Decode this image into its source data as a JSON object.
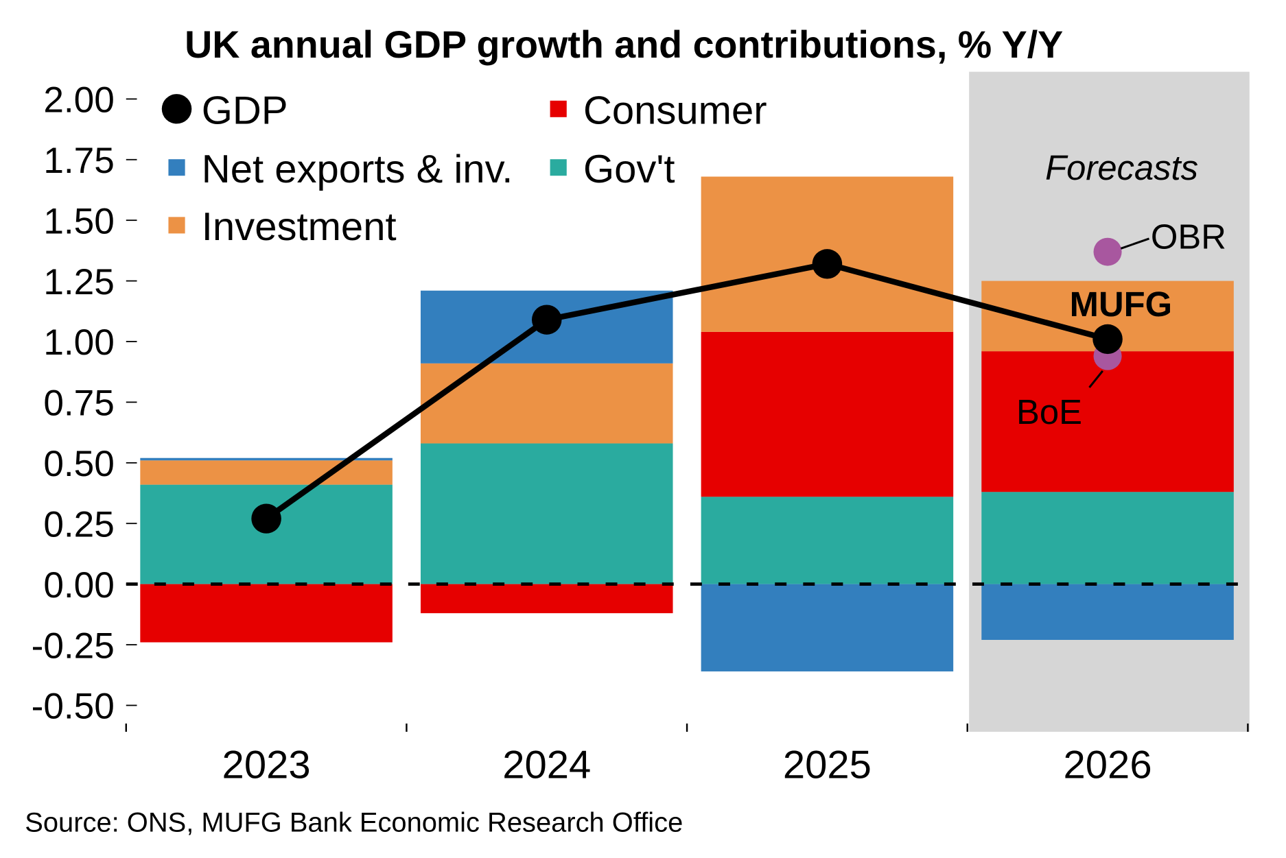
{
  "chart_data": {
    "type": "bar",
    "stacked": true,
    "title": "UK annual GDP growth and contributions, % Y/Y",
    "source": "Source: ONS, MUFG Bank Economic Research Office",
    "categories": [
      "2023",
      "2024",
      "2025",
      "2026"
    ],
    "ylim": [
      -0.5,
      2.0
    ],
    "yticks": [
      "2.00",
      "1.75",
      "1.50",
      "1.25",
      "1.00",
      "0.75",
      "0.50",
      "0.25",
      "0.00",
      "-0.25",
      "-0.50"
    ],
    "ytick_values": [
      2.0,
      1.75,
      1.5,
      1.25,
      1.0,
      0.75,
      0.5,
      0.25,
      0.0,
      -0.25,
      -0.5
    ],
    "series": [
      {
        "name": "Gov't",
        "color": "#2aab9f",
        "values": [
          0.41,
          0.58,
          0.36,
          0.38
        ]
      },
      {
        "name": "Consumer",
        "color": "#e60000",
        "values": [
          -0.24,
          -0.12,
          0.68,
          0.58
        ]
      },
      {
        "name": "Investment",
        "color": "#ec9245",
        "values": [
          0.1,
          0.33,
          0.64,
          0.29
        ]
      },
      {
        "name": "Net exports & inv.",
        "color": "#337fbe",
        "values": [
          0.01,
          0.3,
          -0.36,
          -0.23
        ]
      }
    ],
    "line": {
      "name": "GDP",
      "color": "#000000",
      "values": [
        0.27,
        1.09,
        1.32,
        1.01
      ]
    },
    "forecast_region": {
      "label": "Forecasts",
      "categories": [
        "2026"
      ]
    },
    "annotations": [
      {
        "label": "MUFG",
        "category": "2026",
        "value": 1.01
      },
      {
        "label": "OBR",
        "category": "2026",
        "value": 1.37,
        "color": "#a8579f"
      },
      {
        "label": "BoE",
        "category": "2026",
        "value": 0.94,
        "color": "#a8579f"
      }
    ],
    "legend": [
      "GDP",
      "Consumer",
      "Net exports & inv.",
      "Gov't",
      "Investment"
    ],
    "legend_placement": "top-left",
    "grid": false
  }
}
